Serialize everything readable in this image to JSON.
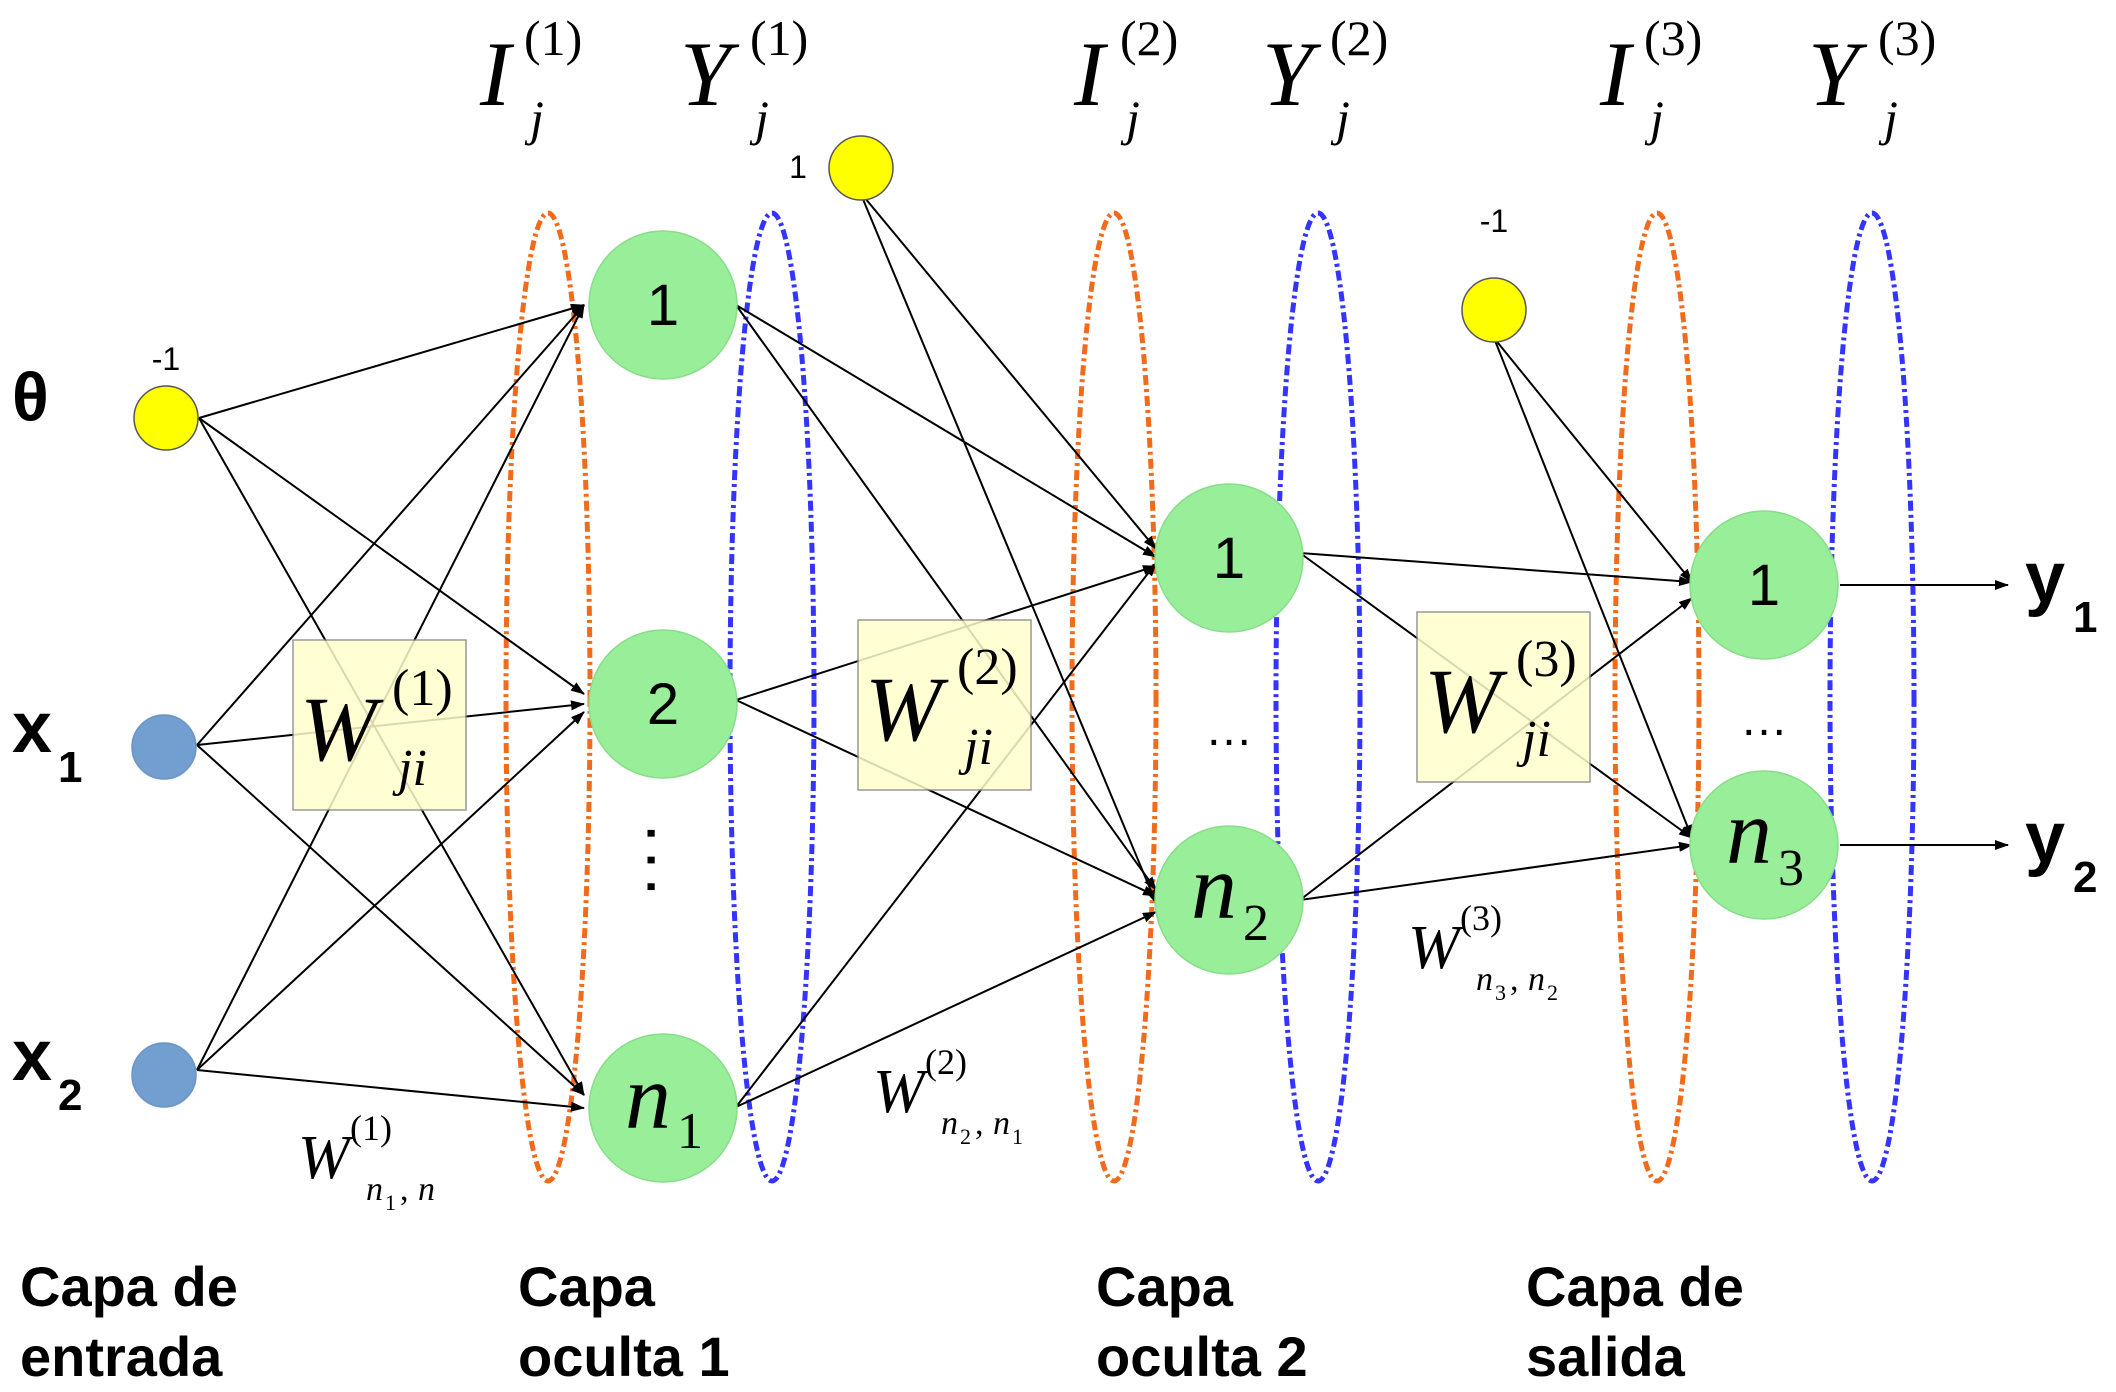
{
  "labels": {
    "theta": "θ",
    "x1_base": "x",
    "x1_sub": "1",
    "x2_base": "x",
    "x2_sub": "2",
    "y1_base": "y",
    "y1_sub": "1",
    "y2_base": "y",
    "y2_sub": "2",
    "bias_input": "-1",
    "bias_h1": "1",
    "bias_h2": "-1",
    "dots_vertical": ". . .",
    "dots_h2": "…",
    "dots_out": "…"
  },
  "layer_headers": [
    {
      "base": "I",
      "sup": "(1)",
      "sub": "j"
    },
    {
      "base": "Y",
      "sup": "(1)",
      "sub": "j"
    },
    {
      "base": "I",
      "sup": "(2)",
      "sub": "j"
    },
    {
      "base": "Y",
      "sup": "(2)",
      "sub": "j"
    },
    {
      "base": "I",
      "sup": "(3)",
      "sub": "j"
    },
    {
      "base": "Y",
      "sup": "(3)",
      "sub": "j"
    }
  ],
  "nodes": {
    "h1_1": "1",
    "h1_2": "2",
    "h1_n_base": "n",
    "h1_n_sub": "1",
    "h2_1": "1",
    "h2_n_base": "n",
    "h2_n_sub": "2",
    "o_1": "1",
    "o_n_base": "n",
    "o_n_sub": "3"
  },
  "weight_boxes": [
    {
      "base": "W",
      "sup": "(1)",
      "sub": "ji"
    },
    {
      "base": "W",
      "sup": "(2)",
      "sub": "ji"
    },
    {
      "base": "W",
      "sup": "(3)",
      "sub": "ji"
    }
  ],
  "weight_labels": [
    {
      "base": "W",
      "sup": "(1)",
      "sub_a": "n",
      "sub_a_sub": "1",
      "sub_sep": ",",
      "sub_b": "n",
      "sub_b_sub": ""
    },
    {
      "base": "W",
      "sup": "(2)",
      "sub_a": "n",
      "sub_a_sub": "2",
      "sub_sep": ",",
      "sub_b": "n",
      "sub_b_sub": "1"
    },
    {
      "base": "W",
      "sup": "(3)",
      "sub_a": "n",
      "sub_a_sub": "3",
      "sub_sep": ",",
      "sub_b": "n",
      "sub_b_sub": "2"
    }
  ],
  "layer_captions": [
    {
      "line1": "Capa de",
      "line2": "entrada"
    },
    {
      "line1": "Capa",
      "line2": "oculta 1"
    },
    {
      "line1": "Capa",
      "line2": "oculta 2"
    },
    {
      "line1": "Capa de",
      "line2": "salida"
    }
  ],
  "colors": {
    "hidden_node": "#99ee99",
    "bias_node": "#ffff00",
    "input_node": "#729fcf",
    "I_oval": "#f06c1c",
    "Y_oval": "#3434ff",
    "weight_box": "#ffffcc"
  }
}
